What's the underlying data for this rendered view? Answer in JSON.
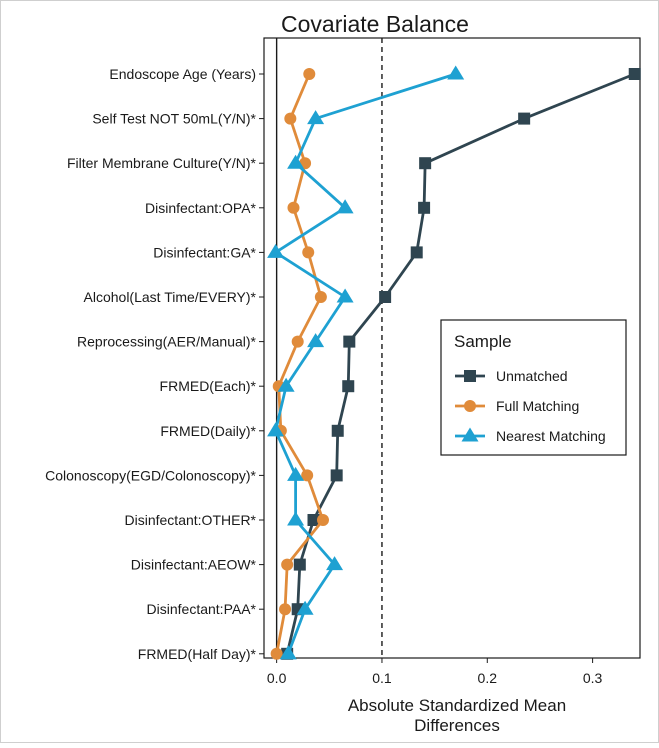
{
  "chart_data": {
    "type": "line",
    "title": "Covariate Balance",
    "xlabel": [
      "Absolute Standardized Mean",
      "Differences"
    ],
    "ylabel": "",
    "xlim": [
      -0.012,
      0.345
    ],
    "xticks": [
      0.0,
      0.1,
      0.2,
      0.3
    ],
    "xtick_labels": [
      "0.0",
      "0.1",
      "0.2",
      "0.3"
    ],
    "reference_lines": [
      {
        "x": 0.0,
        "style": "solid"
      },
      {
        "x": 0.1,
        "style": "dashed"
      }
    ],
    "grid": false,
    "legend": {
      "title": "Sample",
      "position": "right"
    },
    "categories": [
      "Endoscope Age (Years)",
      "Self Test NOT 50mL(Y/N)*",
      "Filter Membrane Culture(Y/N)*",
      "Disinfectant:OPA*",
      "Disinfectant:GA*",
      "Alcohol(Last Time/EVERY)*",
      "Reprocessing(AER/Manual)*",
      "FRMED(Each)*",
      "FRMED(Daily)*",
      "Colonoscopy(EGD/Colonoscopy)*",
      "Disinfectant:OTHER*",
      "Disinfectant:AEOW*",
      "Disinfectant:PAA*",
      "FRMED(Half Day)*"
    ],
    "series": [
      {
        "name": "Unmatched",
        "color": "#2f4550",
        "marker": "square",
        "values": [
          0.34,
          0.235,
          0.141,
          0.14,
          0.133,
          0.103,
          0.069,
          0.068,
          0.058,
          0.057,
          0.035,
          0.022,
          0.02,
          0.01
        ]
      },
      {
        "name": "Full Matching",
        "color": "#e08b3a",
        "marker": "circle",
        "values": [
          0.031,
          0.013,
          0.027,
          0.016,
          0.03,
          0.042,
          0.02,
          0.002,
          0.004,
          0.029,
          0.044,
          0.01,
          0.008,
          0.0
        ]
      },
      {
        "name": "Nearest Matching",
        "color": "#1ea1d2",
        "marker": "triangle",
        "values": [
          0.17,
          0.037,
          0.018,
          0.065,
          -0.001,
          0.065,
          0.037,
          0.009,
          -0.001,
          0.018,
          0.018,
          0.055,
          0.027,
          0.011
        ]
      }
    ]
  }
}
